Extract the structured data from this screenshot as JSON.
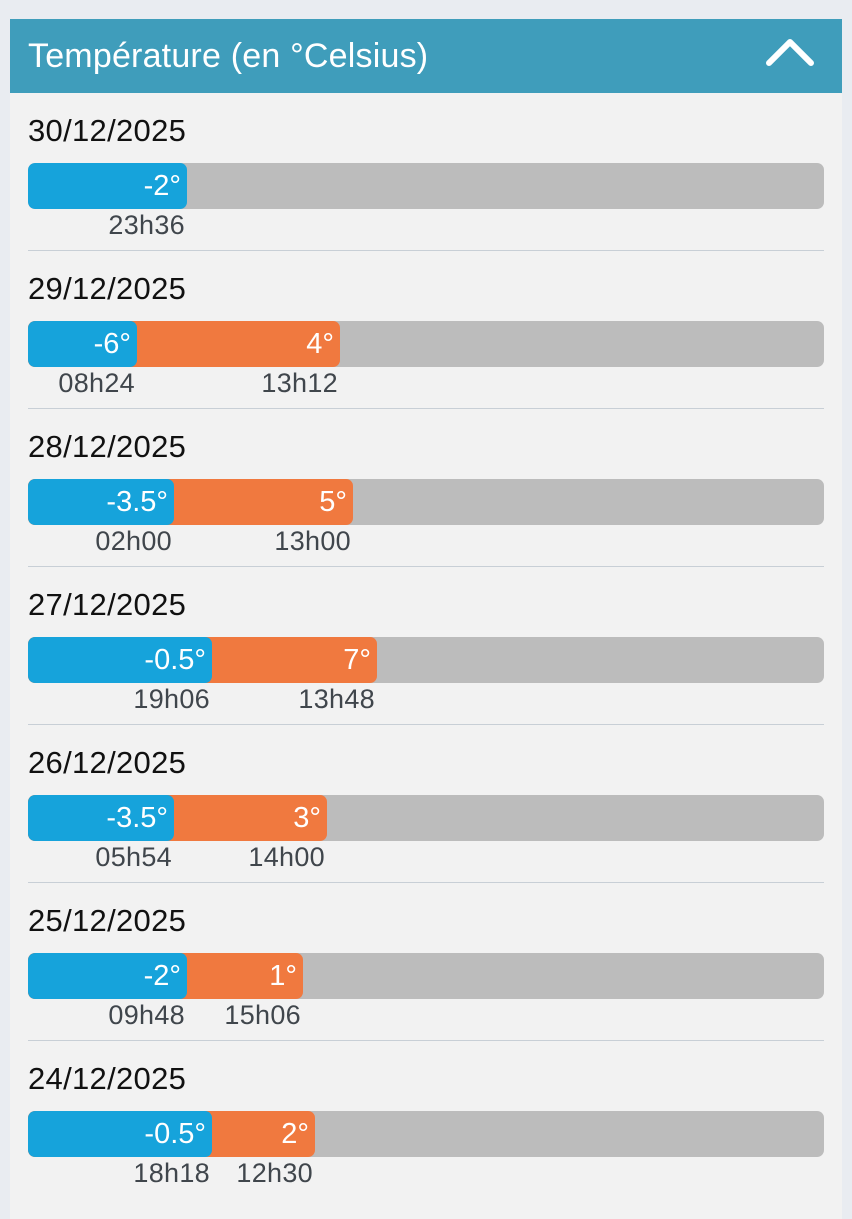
{
  "header": {
    "title": "Température (en °Celsius)",
    "icon": "chevron-up-icon",
    "color": "#3f9dbb"
  },
  "colors": {
    "min": "#16a3db",
    "max": "#f0793f",
    "track": "#bcbcbc"
  },
  "days": [
    {
      "date": "30/12/2025",
      "min": {
        "label": "-2°",
        "time": "23h36",
        "level": 0.2
      },
      "max": null
    },
    {
      "date": "29/12/2025",
      "min": {
        "label": "-6°",
        "time": "08h24",
        "level": 0.137
      },
      "max": {
        "label": "4°",
        "time": "13h12",
        "level": 0.392
      }
    },
    {
      "date": "28/12/2025",
      "min": {
        "label": "-3.5°",
        "time": "02h00",
        "level": 0.184
      },
      "max": {
        "label": "5°",
        "time": "13h00",
        "level": 0.408
      }
    },
    {
      "date": "27/12/2025",
      "min": {
        "label": "-0.5°",
        "time": "19h06",
        "level": 0.231
      },
      "max": {
        "label": "7°",
        "time": "13h48",
        "level": 0.439
      }
    },
    {
      "date": "26/12/2025",
      "min": {
        "label": "-3.5°",
        "time": "05h54",
        "level": 0.184
      },
      "max": {
        "label": "3°",
        "time": "14h00",
        "level": 0.376
      }
    },
    {
      "date": "25/12/2025",
      "min": {
        "label": "-2°",
        "time": "09h48",
        "level": 0.2
      },
      "max": {
        "label": "1°",
        "time": "15h06",
        "level": 0.345
      }
    },
    {
      "date": "24/12/2025",
      "min": {
        "label": "-0.5°",
        "time": "18h18",
        "level": 0.231
      },
      "max": {
        "label": "2°",
        "time": "12h30",
        "level": 0.361
      }
    }
  ]
}
